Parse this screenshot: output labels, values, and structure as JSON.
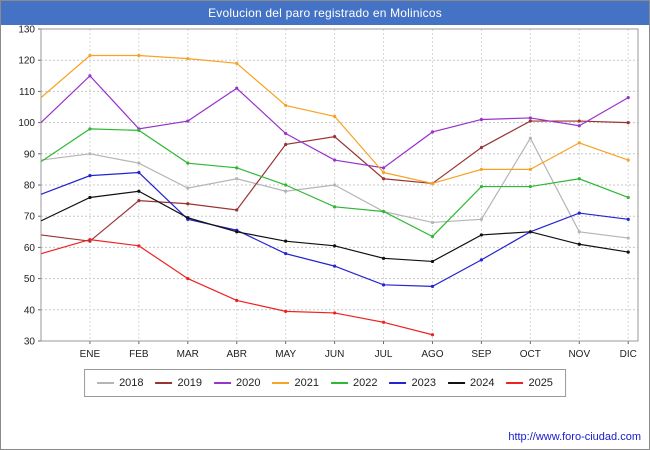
{
  "title": "Evolucion del paro registrado en Molinicos",
  "footer": {
    "url": "http://www.foro-ciudad.com"
  },
  "chart_data": {
    "type": "line",
    "title": "Evolucion del paro registrado en Molinicos",
    "categories": [
      "ENE",
      "FEB",
      "MAR",
      "ABR",
      "MAY",
      "JUN",
      "JUL",
      "AGO",
      "SEP",
      "OCT",
      "NOV",
      "DIC"
    ],
    "ylabel": "",
    "xlabel": "",
    "ylim": [
      30,
      130
    ],
    "ytick_step": 10,
    "grid": true,
    "legend_position": "bottom",
    "series": [
      {
        "name": "2018",
        "color": "#b5b5b5",
        "start_value": 88,
        "values": [
          90,
          87,
          79,
          82,
          78,
          80,
          71.5,
          68,
          69,
          95,
          65,
          63
        ]
      },
      {
        "name": "2019",
        "color": "#993333",
        "start_value": 64,
        "values": [
          62,
          75,
          74,
          72,
          93,
          95.5,
          82,
          80.5,
          92,
          100.5,
          100.5,
          100
        ]
      },
      {
        "name": "2020",
        "color": "#9933cc",
        "start_value": 100,
        "values": [
          115,
          98,
          100.5,
          111,
          96.5,
          88,
          85.5,
          97,
          101,
          101.5,
          99,
          108
        ]
      },
      {
        "name": "2021",
        "color": "#f7a325",
        "start_value": 108,
        "values": [
          121.5,
          121.5,
          120.5,
          119,
          105.5,
          102,
          84,
          80.5,
          85,
          85,
          93.5,
          88
        ]
      },
      {
        "name": "2022",
        "color": "#2eb834",
        "start_value": 87.5,
        "values": [
          98,
          97.5,
          87,
          85.5,
          80,
          73,
          71.5,
          63.5,
          79.5,
          79.5,
          82,
          76
        ]
      },
      {
        "name": "2023",
        "color": "#2424d0",
        "start_value": 77,
        "values": [
          83,
          84,
          69,
          65.5,
          58,
          54,
          48,
          47.5,
          56,
          65,
          71,
          69
        ]
      },
      {
        "name": "2024",
        "color": "#111111",
        "start_value": 68.5,
        "values": [
          76,
          78,
          69.5,
          65,
          62,
          60.5,
          56.5,
          55.5,
          64,
          65,
          61,
          58.5
        ]
      },
      {
        "name": "2025",
        "color": "#ee2222",
        "start_value": 58,
        "values": [
          62.5,
          60.5,
          50,
          43,
          39.5,
          39,
          36,
          32,
          null,
          null,
          null,
          null
        ]
      }
    ]
  }
}
